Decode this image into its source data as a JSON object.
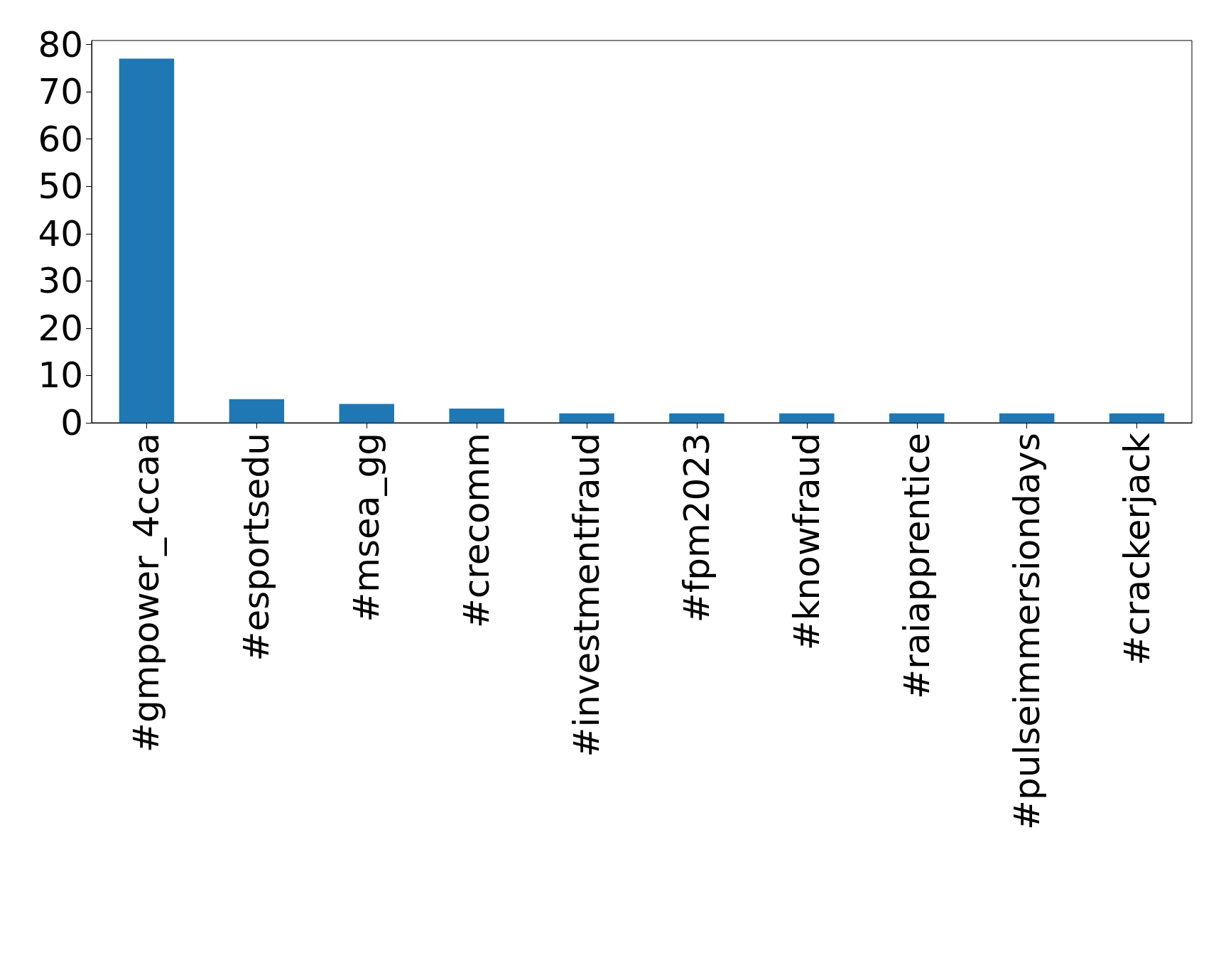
{
  "chart_data": {
    "type": "bar",
    "categories": [
      "#gmpower_4ccaa",
      "#esportsedu",
      "#msea_gg",
      "#crecomm",
      "#investmentfraud",
      "#fpm2023",
      "#knowfraud",
      "#raiapprentice",
      "#pulseimmersiondays",
      "#crackerjack"
    ],
    "values": [
      77,
      5,
      4,
      3,
      2,
      2,
      2,
      2,
      2,
      2
    ],
    "color": "#1f77b4",
    "ylim": [
      0,
      80.85
    ],
    "yticks": [
      0,
      10,
      20,
      30,
      40,
      50,
      60,
      70,
      80
    ],
    "grid": false
  }
}
